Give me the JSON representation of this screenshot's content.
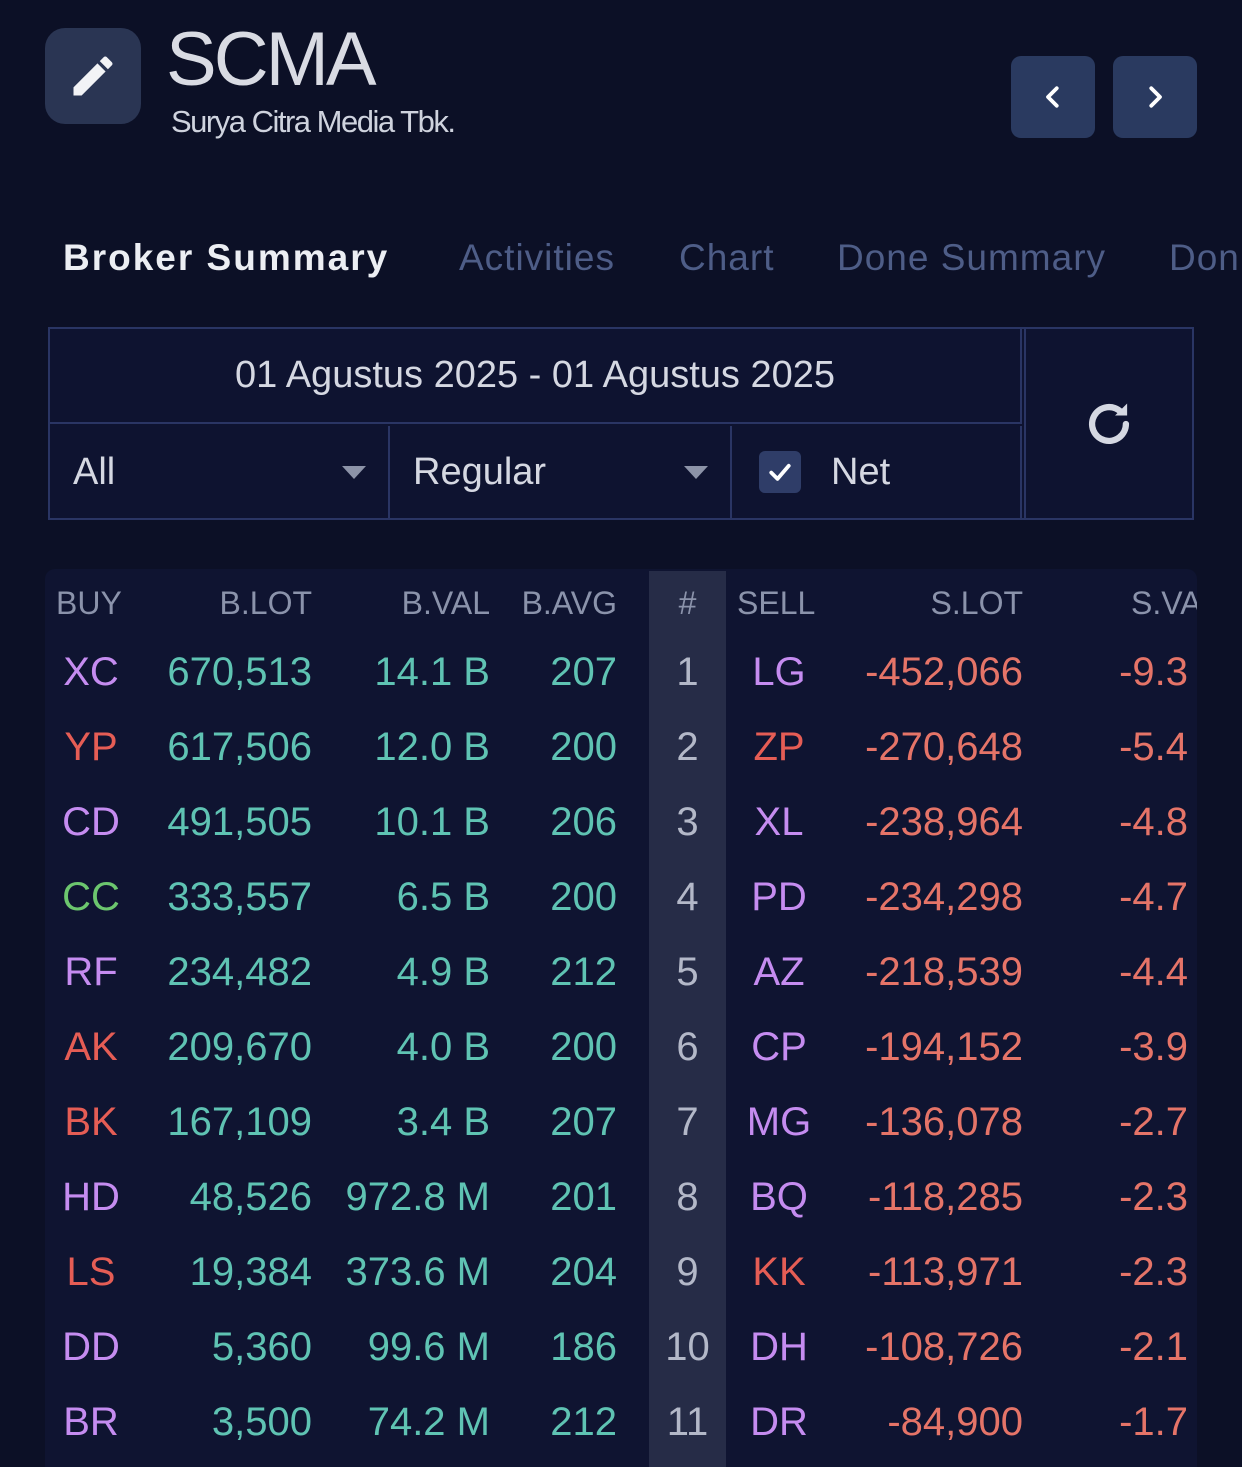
{
  "header": {
    "ticker": "SCMA",
    "company": "Surya Citra Media Tbk."
  },
  "tabs": [
    {
      "label": "Broker Summary",
      "active": true
    },
    {
      "label": "Activities",
      "active": false
    },
    {
      "label": "Chart",
      "active": false
    },
    {
      "label": "Done Summary",
      "active": false
    },
    {
      "label": "Don",
      "active": false
    }
  ],
  "filters": {
    "date_range": "01 Agustus 2025 - 01 Agustus 2025",
    "investor_type": "All",
    "market": "Regular",
    "net_checked": true,
    "net_label": "Net"
  },
  "table": {
    "headers": {
      "buy": "BUY",
      "blot": "B.LOT",
      "bval": "B.VAL",
      "bavg": "B.AVG",
      "num": "#",
      "sell": "SELL",
      "slot": "S.LOT",
      "sval": "S.VA"
    },
    "colors": {
      "purple": "#c58cf0",
      "red": "#e55d55",
      "green": "#6cc66e",
      "positive": "#5fc3b3",
      "negative": "#e57468"
    },
    "rows": [
      {
        "num": "1",
        "buy": "XC",
        "buy_color": "purple",
        "blot": "670,513",
        "bval": "14.1 B",
        "bavg": "207",
        "sell": "LG",
        "sell_color": "purple",
        "slot": "-452,066",
        "sval": "-9.3"
      },
      {
        "num": "2",
        "buy": "YP",
        "buy_color": "red",
        "blot": "617,506",
        "bval": "12.0 B",
        "bavg": "200",
        "sell": "ZP",
        "sell_color": "red",
        "slot": "-270,648",
        "sval": "-5.4"
      },
      {
        "num": "3",
        "buy": "CD",
        "buy_color": "purple",
        "blot": "491,505",
        "bval": "10.1 B",
        "bavg": "206",
        "sell": "XL",
        "sell_color": "purple",
        "slot": "-238,964",
        "sval": "-4.8"
      },
      {
        "num": "4",
        "buy": "CC",
        "buy_color": "green",
        "blot": "333,557",
        "bval": "6.5 B",
        "bavg": "200",
        "sell": "PD",
        "sell_color": "purple",
        "slot": "-234,298",
        "sval": "-4.7"
      },
      {
        "num": "5",
        "buy": "RF",
        "buy_color": "purple",
        "blot": "234,482",
        "bval": "4.9 B",
        "bavg": "212",
        "sell": "AZ",
        "sell_color": "purple",
        "slot": "-218,539",
        "sval": "-4.4"
      },
      {
        "num": "6",
        "buy": "AK",
        "buy_color": "red",
        "blot": "209,670",
        "bval": "4.0 B",
        "bavg": "200",
        "sell": "CP",
        "sell_color": "purple",
        "slot": "-194,152",
        "sval": "-3.9"
      },
      {
        "num": "7",
        "buy": "BK",
        "buy_color": "red",
        "blot": "167,109",
        "bval": "3.4 B",
        "bavg": "207",
        "sell": "MG",
        "sell_color": "purple",
        "slot": "-136,078",
        "sval": "-2.7"
      },
      {
        "num": "8",
        "buy": "HD",
        "buy_color": "purple",
        "blot": "48,526",
        "bval": "972.8 M",
        "bavg": "201",
        "sell": "BQ",
        "sell_color": "purple",
        "slot": "-118,285",
        "sval": "-2.3"
      },
      {
        "num": "9",
        "buy": "LS",
        "buy_color": "red",
        "blot": "19,384",
        "bval": "373.6 M",
        "bavg": "204",
        "sell": "KK",
        "sell_color": "red",
        "slot": "-113,971",
        "sval": "-2.3"
      },
      {
        "num": "10",
        "buy": "DD",
        "buy_color": "purple",
        "blot": "5,360",
        "bval": "99.6 M",
        "bavg": "186",
        "sell": "DH",
        "sell_color": "purple",
        "slot": "-108,726",
        "sval": "-2.1"
      },
      {
        "num": "11",
        "buy": "BR",
        "buy_color": "purple",
        "blot": "3,500",
        "bval": "74.2 M",
        "bavg": "212",
        "sell": "DR",
        "sell_color": "purple",
        "slot": "-84,900",
        "sval": "-1.7"
      }
    ]
  }
}
